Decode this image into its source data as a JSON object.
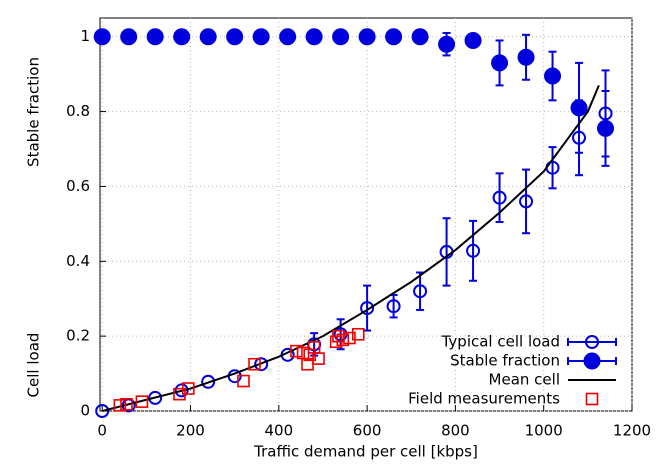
{
  "chart_data": {
    "type": "scatter",
    "xlabel": "Traffic demand per cell [kbps]",
    "ylabels": [
      "Stable fraction",
      "Cell load"
    ],
    "xlim": [
      -5,
      1200
    ],
    "ylim": [
      0,
      1.05
    ],
    "xticks": [
      0,
      200,
      400,
      600,
      800,
      1000,
      1200
    ],
    "yticks": [
      0,
      0.2,
      0.4,
      0.6,
      0.8,
      1
    ],
    "grid": true,
    "legend": "lower right",
    "series": [
      {
        "name": "Typical cell load",
        "color": "#0000dd",
        "marker": "open-circle",
        "x": [
          0,
          60,
          120,
          180,
          240,
          300,
          360,
          420,
          480,
          540,
          600,
          660,
          720,
          780,
          840,
          900,
          960,
          1020,
          1080,
          1140
        ],
        "values": [
          0,
          0.015,
          0.035,
          0.055,
          0.078,
          0.093,
          0.125,
          0.15,
          0.178,
          0.205,
          0.275,
          0.28,
          0.32,
          0.425,
          0.428,
          0.57,
          0.56,
          0.65,
          0.73,
          0.795
        ],
        "errors": [
          null,
          null,
          null,
          null,
          null,
          null,
          null,
          null,
          0.03,
          0.04,
          0.06,
          0.03,
          0.05,
          0.09,
          0.08,
          0.065,
          0.085,
          0.055,
          0.1,
          0.115
        ]
      },
      {
        "name": "Stable fraction",
        "color": "#0000dd",
        "marker": "filled-circle",
        "x": [
          0,
          60,
          120,
          180,
          240,
          300,
          360,
          420,
          480,
          540,
          600,
          660,
          720,
          780,
          840,
          900,
          960,
          1020,
          1080,
          1140
        ],
        "values": [
          1,
          1,
          1,
          1,
          1,
          1,
          1,
          1,
          1,
          1,
          1,
          1,
          1,
          0.98,
          0.99,
          0.93,
          0.945,
          0.895,
          0.81,
          0.755
        ],
        "errors": [
          null,
          null,
          null,
          null,
          null,
          null,
          null,
          null,
          null,
          null,
          null,
          null,
          null,
          0.03,
          null,
          0.06,
          0.06,
          0.065,
          0.12,
          0.1
        ]
      },
      {
        "name": "Mean cell",
        "color": "#000000",
        "marker": "line",
        "x": [
          0,
          100,
          200,
          300,
          400,
          500,
          600,
          700,
          800,
          900,
          1000,
          1100,
          1125
        ],
        "values": [
          0,
          0.03,
          0.06,
          0.1,
          0.145,
          0.2,
          0.27,
          0.345,
          0.43,
          0.53,
          0.64,
          0.8,
          0.87
        ]
      },
      {
        "name": "Field measurements",
        "color": "#ee0000",
        "marker": "square",
        "x": [
          40,
          55,
          90,
          175,
          195,
          320,
          345,
          440,
          455,
          465,
          470,
          480,
          490,
          530,
          535,
          545,
          560,
          580
        ],
        "values": [
          0.015,
          0.018,
          0.025,
          0.045,
          0.06,
          0.08,
          0.125,
          0.16,
          0.155,
          0.125,
          0.15,
          0.17,
          0.14,
          0.185,
          0.2,
          0.19,
          0.195,
          0.205
        ]
      }
    ]
  }
}
